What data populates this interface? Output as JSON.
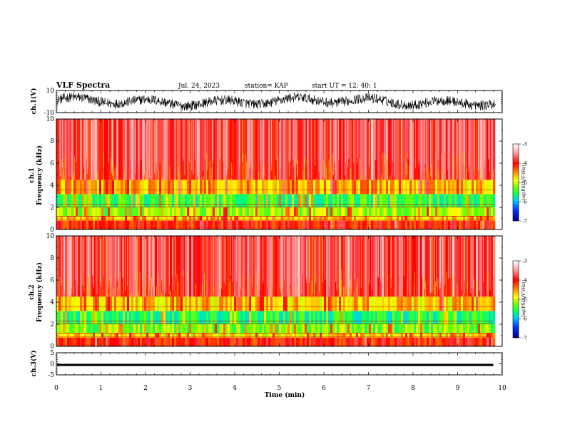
{
  "header": {
    "title": "VLF Spectra",
    "date": "Jul. 24, 2023",
    "station": "station= KAP",
    "start_ut": "start UT =   12: 40: 1"
  },
  "chart_data": [
    {
      "type": "line",
      "panel": "ch1_waveform",
      "ylabel": "ch.1(V)",
      "ylim": [
        -10,
        10
      ],
      "yticks": [
        "10",
        "-10"
      ],
      "xlim": [
        0,
        10
      ],
      "color": "#000000"
    },
    {
      "type": "heatmap",
      "panel": "ch1_spectrogram",
      "ylabel": "ch.1 Frequency (kHz)",
      "ylabel_line1": "ch.1",
      "ylabel_line2": "Frequency (kHz)",
      "ylim": [
        0,
        10
      ],
      "yticks": [
        "0",
        "2",
        "4",
        "6",
        "8",
        "10"
      ],
      "xlim": [
        0,
        10
      ],
      "data_end_min": 9.8,
      "bands": [
        {
          "from_khz": 0,
          "to_khz": 0.8,
          "level": -4.0
        },
        {
          "from_khz": 0.8,
          "to_khz": 1.2,
          "level": -4.6
        },
        {
          "from_khz": 1.2,
          "to_khz": 2.0,
          "level": -5.0
        },
        {
          "from_khz": 2.0,
          "to_khz": 3.2,
          "level": -5.3
        },
        {
          "from_khz": 3.2,
          "to_khz": 4.5,
          "level": -4.5
        },
        {
          "from_khz": 4.5,
          "to_khz": 10,
          "level": -3.8
        }
      ],
      "colorbar": {
        "label": "log(PSD)(V²/Hz)",
        "ticks": [
          "-3",
          "-4",
          "-5",
          "-6",
          "-7"
        ],
        "range": [
          -7,
          -3
        ]
      }
    },
    {
      "type": "heatmap",
      "panel": "ch2_spectrogram",
      "ylabel": "ch.2 Frequency (kHz)",
      "ylabel_line1": "ch.2",
      "ylabel_line2": "Frequency (kHz)",
      "ylim": [
        0,
        10
      ],
      "yticks": [
        "0",
        "2",
        "4",
        "6",
        "8",
        "10"
      ],
      "xlim": [
        0,
        10
      ],
      "data_end_min": 9.8,
      "bands": [
        {
          "from_khz": 0,
          "to_khz": 0.8,
          "level": -4.0
        },
        {
          "from_khz": 0.8,
          "to_khz": 1.2,
          "level": -4.7
        },
        {
          "from_khz": 1.2,
          "to_khz": 2.0,
          "level": -5.1
        },
        {
          "from_khz": 2.0,
          "to_khz": 3.2,
          "level": -5.4
        },
        {
          "from_khz": 3.2,
          "to_khz": 4.5,
          "level": -4.6
        },
        {
          "from_khz": 4.5,
          "to_khz": 10,
          "level": -3.8
        }
      ],
      "colorbar": {
        "label": "log(PSD)(V²/Hz)",
        "ticks": [
          "-3",
          "-4",
          "-5",
          "-6",
          "-7"
        ],
        "range": [
          -7,
          -3
        ]
      }
    },
    {
      "type": "line",
      "panel": "ch3_waveform",
      "ylabel": "ch.3(V)",
      "ylim": [
        -5,
        5
      ],
      "yticks": [
        "5",
        "0",
        "-5"
      ],
      "xlim": [
        0,
        10
      ],
      "level_v": [
        -1,
        0
      ],
      "data_end_min": 9.8,
      "color": "#000000"
    }
  ],
  "x_axis": {
    "label": "Time (min)",
    "ticks": [
      "0",
      "1",
      "2",
      "3",
      "4",
      "5",
      "6",
      "7",
      "8",
      "9",
      "10"
    ],
    "range": [
      0,
      10
    ]
  }
}
